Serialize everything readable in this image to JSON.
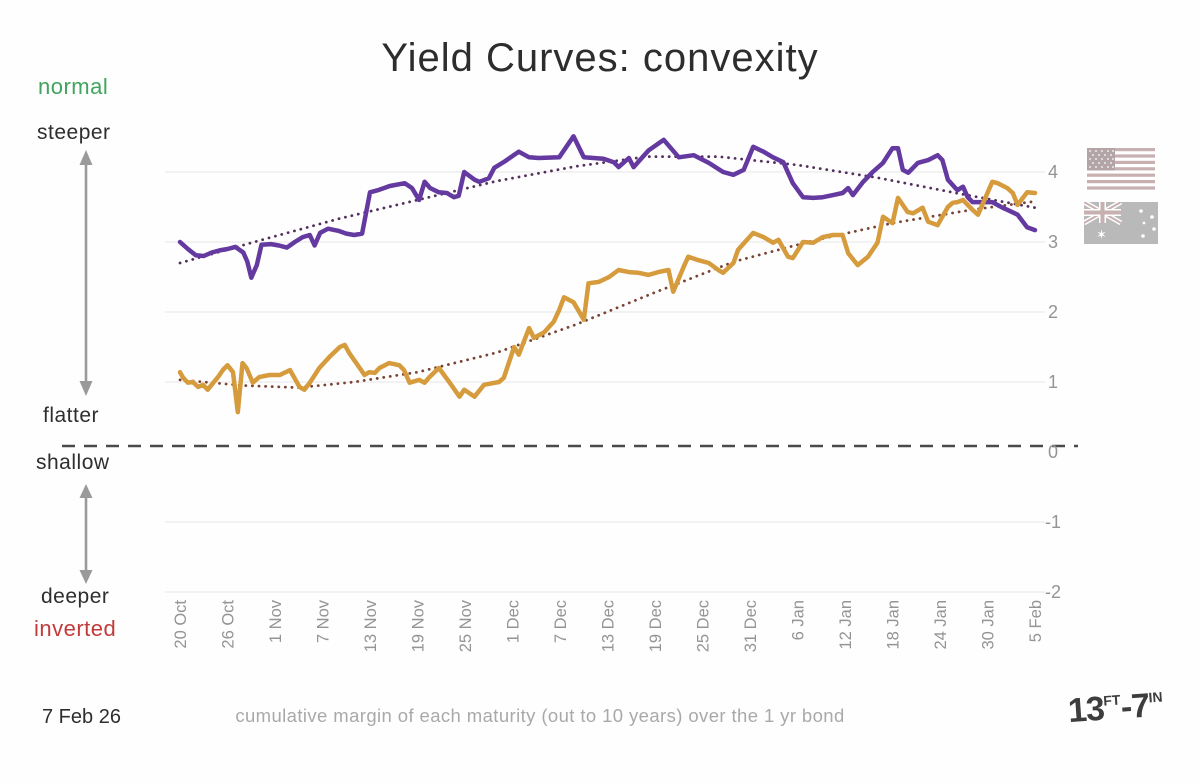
{
  "title": "Yield Curves: convexity",
  "left_labels": {
    "normal": "normal",
    "steeper": "steeper",
    "flatter": "flatter",
    "shallow": "shallow",
    "deeper": "deeper",
    "inverted": "inverted"
  },
  "footer": {
    "date": "7 Feb 26",
    "caption": "cumulative margin of each maturity (out to 10 years) over the 1 yr bond",
    "logo": {
      "big1": "13",
      "sup1": "FT",
      "big2": "-7",
      "sup2": "IN"
    }
  },
  "colors": {
    "purple_line": "#6439a0",
    "orange_line": "#d59b3c",
    "purple_trend": "#53305c",
    "orange_trend": "#7a4434",
    "gridline": "#ececec",
    "zero_dash": "#4a4a4a",
    "axis_text": "#949494",
    "arrow": "#9a9a9a",
    "normal_green": "#3fa45c",
    "inverted_red": "#c23b3b"
  },
  "chart_data": {
    "type": "line",
    "title": "Yield Curves: convexity",
    "xlabel": "",
    "ylabel": "cumulative margin (out to 10 years) over the 1 yr bond",
    "x_tick_labels": [
      "20 Oct",
      "26 Oct",
      "1 Nov",
      "7 Nov",
      "13 Nov",
      "19 Nov",
      "25 Nov",
      "1 Dec",
      "7 Dec",
      "13 Dec",
      "19 Dec",
      "25 Dec",
      "31 Dec",
      "6 Jan",
      "12 Jan",
      "18 Jan",
      "24 Jan",
      "30 Jan",
      "5 Feb"
    ],
    "days_per_tick": 6,
    "x_range_days": [
      0,
      108
    ],
    "ylim": [
      -2,
      4.6
    ],
    "y_ticks": [
      4,
      3,
      2,
      1,
      0,
      -1,
      -2
    ],
    "zero_line_dashed": true,
    "grid": true,
    "legend_icons": [
      "us-flag",
      "australia-flag"
    ],
    "series": [
      {
        "name": "australia-purple-line",
        "color_key": "purple_line",
        "points": [
          [
            0,
            3.0
          ],
          [
            1,
            2.9
          ],
          [
            2,
            2.81
          ],
          [
            3,
            2.8
          ],
          [
            4,
            2.85
          ],
          [
            5,
            2.88
          ],
          [
            6,
            2.9
          ],
          [
            7,
            2.93
          ],
          [
            8,
            2.85
          ],
          [
            8.5,
            2.72
          ],
          [
            9,
            2.49
          ],
          [
            9.7,
            2.67
          ],
          [
            10.3,
            2.96
          ],
          [
            11.5,
            2.97
          ],
          [
            12.5,
            2.95
          ],
          [
            13.5,
            2.92
          ],
          [
            14.5,
            3.0
          ],
          [
            15.5,
            3.07
          ],
          [
            16.4,
            3.1
          ],
          [
            17,
            2.95
          ],
          [
            17.7,
            3.13
          ],
          [
            18.7,
            3.19
          ],
          [
            20,
            3.16
          ],
          [
            21,
            3.12
          ],
          [
            22,
            3.1
          ],
          [
            23,
            3.12
          ],
          [
            24,
            3.71
          ],
          [
            25,
            3.74
          ],
          [
            26.5,
            3.8
          ],
          [
            28.4,
            3.84
          ],
          [
            29.3,
            3.77
          ],
          [
            30.2,
            3.6
          ],
          [
            30.9,
            3.86
          ],
          [
            31.6,
            3.77
          ],
          [
            32.7,
            3.71
          ],
          [
            33.7,
            3.7
          ],
          [
            34.6,
            3.64
          ],
          [
            35.2,
            3.66
          ],
          [
            35.9,
            4.0
          ],
          [
            37.2,
            3.89
          ],
          [
            37.8,
            3.86
          ],
          [
            39,
            3.91
          ],
          [
            39.7,
            4.06
          ],
          [
            41,
            4.15
          ],
          [
            42.8,
            4.29
          ],
          [
            44.1,
            4.21
          ],
          [
            45.3,
            4.2
          ],
          [
            47.9,
            4.21
          ],
          [
            49.7,
            4.51
          ],
          [
            51,
            4.21
          ],
          [
            53.5,
            4.19
          ],
          [
            54.8,
            4.14
          ],
          [
            55.4,
            4.07
          ],
          [
            56.7,
            4.2
          ],
          [
            57.3,
            4.07
          ],
          [
            59.2,
            4.31
          ],
          [
            61.1,
            4.46
          ],
          [
            63,
            4.21
          ],
          [
            64.9,
            4.24
          ],
          [
            66.8,
            4.13
          ],
          [
            68.6,
            4.0
          ],
          [
            69.9,
            3.96
          ],
          [
            71.2,
            4.03
          ],
          [
            72.4,
            4.36
          ],
          [
            73.7,
            4.29
          ],
          [
            74.9,
            4.21
          ],
          [
            76.2,
            4.14
          ],
          [
            77.4,
            3.84
          ],
          [
            78.7,
            3.64
          ],
          [
            80,
            3.63
          ],
          [
            81.2,
            3.64
          ],
          [
            82.5,
            3.67
          ],
          [
            83.7,
            3.7
          ],
          [
            84.4,
            3.77
          ],
          [
            85,
            3.67
          ],
          [
            86.3,
            3.86
          ],
          [
            87.5,
            4.0
          ],
          [
            88.8,
            4.13
          ],
          [
            90,
            4.34
          ],
          [
            90.7,
            4.34
          ],
          [
            91.3,
            4.03
          ],
          [
            92,
            3.99
          ],
          [
            93.2,
            4.13
          ],
          [
            94.5,
            4.17
          ],
          [
            95.7,
            4.24
          ],
          [
            96.3,
            4.17
          ],
          [
            97,
            3.89
          ],
          [
            98.2,
            3.74
          ],
          [
            98.9,
            3.79
          ],
          [
            99.5,
            3.64
          ],
          [
            100.1,
            3.57
          ],
          [
            101.4,
            3.57
          ],
          [
            102.6,
            3.57
          ],
          [
            103.9,
            3.49
          ],
          [
            104.5,
            3.46
          ],
          [
            105.8,
            3.39
          ],
          [
            107,
            3.21
          ],
          [
            108,
            3.17
          ]
        ]
      },
      {
        "name": "us-orange-line",
        "color_key": "orange_line",
        "points": [
          [
            0,
            1.14
          ],
          [
            0.4,
            1.06
          ],
          [
            1,
            0.99
          ],
          [
            1.6,
            1.0
          ],
          [
            2.3,
            0.93
          ],
          [
            2.9,
            0.96
          ],
          [
            3.5,
            0.89
          ],
          [
            4.2,
            0.99
          ],
          [
            4.8,
            1.07
          ],
          [
            5.4,
            1.17
          ],
          [
            6,
            1.24
          ],
          [
            6.7,
            1.14
          ],
          [
            7.3,
            0.57
          ],
          [
            7.9,
            1.27
          ],
          [
            8.4,
            1.2
          ],
          [
            9.2,
            0.99
          ],
          [
            10,
            1.07
          ],
          [
            11.3,
            1.1
          ],
          [
            12.6,
            1.1
          ],
          [
            13.9,
            1.17
          ],
          [
            15.1,
            0.93
          ],
          [
            15.7,
            0.89
          ],
          [
            16.4,
            0.99
          ],
          [
            17.6,
            1.2
          ],
          [
            18.9,
            1.36
          ],
          [
            20.2,
            1.5
          ],
          [
            20.8,
            1.53
          ],
          [
            21.4,
            1.41
          ],
          [
            22.7,
            1.2
          ],
          [
            23.3,
            1.1
          ],
          [
            23.9,
            1.14
          ],
          [
            24.6,
            1.13
          ],
          [
            25.2,
            1.2
          ],
          [
            26.4,
            1.27
          ],
          [
            27.7,
            1.24
          ],
          [
            28.3,
            1.17
          ],
          [
            29,
            0.99
          ],
          [
            30.2,
            1.03
          ],
          [
            30.9,
            0.99
          ],
          [
            31.5,
            1.07
          ],
          [
            32.7,
            1.2
          ],
          [
            34,
            1.0
          ],
          [
            35.3,
            0.79
          ],
          [
            35.9,
            0.89
          ],
          [
            37.2,
            0.79
          ],
          [
            38.4,
            0.96
          ],
          [
            40.3,
            1.0
          ],
          [
            40.9,
            1.06
          ],
          [
            42.2,
            1.5
          ],
          [
            42.8,
            1.39
          ],
          [
            44.1,
            1.77
          ],
          [
            44.7,
            1.63
          ],
          [
            46,
            1.71
          ],
          [
            47.2,
            1.86
          ],
          [
            47.9,
            2.03
          ],
          [
            48.5,
            2.21
          ],
          [
            49.7,
            2.14
          ],
          [
            51,
            1.89
          ],
          [
            51.6,
            2.41
          ],
          [
            52.9,
            2.43
          ],
          [
            54.2,
            2.5
          ],
          [
            55.4,
            2.6
          ],
          [
            56.7,
            2.57
          ],
          [
            57.9,
            2.56
          ],
          [
            59.2,
            2.53
          ],
          [
            60.4,
            2.57
          ],
          [
            61.7,
            2.6
          ],
          [
            62.3,
            2.29
          ],
          [
            63.6,
            2.64
          ],
          [
            64.2,
            2.79
          ],
          [
            65.5,
            2.74
          ],
          [
            66.8,
            2.7
          ],
          [
            68,
            2.6
          ],
          [
            68.6,
            2.56
          ],
          [
            69.9,
            2.7
          ],
          [
            70.5,
            2.89
          ],
          [
            72.4,
            3.13
          ],
          [
            73.7,
            3.07
          ],
          [
            74.9,
            2.99
          ],
          [
            75.6,
            3.03
          ],
          [
            76.8,
            2.79
          ],
          [
            77.4,
            2.77
          ],
          [
            78.7,
            3.0
          ],
          [
            80,
            2.99
          ],
          [
            81.2,
            3.07
          ],
          [
            82.5,
            3.1
          ],
          [
            83.7,
            3.1
          ],
          [
            84.4,
            2.84
          ],
          [
            85.6,
            2.67
          ],
          [
            86.9,
            2.79
          ],
          [
            88.1,
            2.99
          ],
          [
            88.8,
            3.36
          ],
          [
            90,
            3.27
          ],
          [
            90.7,
            3.63
          ],
          [
            91.9,
            3.43
          ],
          [
            92.6,
            3.41
          ],
          [
            93.8,
            3.49
          ],
          [
            94.5,
            3.29
          ],
          [
            95.7,
            3.24
          ],
          [
            97,
            3.5
          ],
          [
            97.6,
            3.56
          ],
          [
            98.2,
            3.57
          ],
          [
            98.9,
            3.6
          ],
          [
            100.1,
            3.46
          ],
          [
            100.8,
            3.39
          ],
          [
            102.6,
            3.86
          ],
          [
            103.3,
            3.84
          ],
          [
            104.5,
            3.77
          ],
          [
            105.2,
            3.7
          ],
          [
            105.8,
            3.53
          ],
          [
            107,
            3.71
          ],
          [
            108,
            3.7
          ]
        ]
      }
    ],
    "trend_series": [
      {
        "name": "australia-purple-trend-dotted",
        "color_key": "purple_trend",
        "points": [
          [
            0,
            2.7
          ],
          [
            10,
            3.02
          ],
          [
            20,
            3.33
          ],
          [
            30,
            3.6
          ],
          [
            40,
            3.87
          ],
          [
            50,
            4.08
          ],
          [
            59,
            4.22
          ],
          [
            68,
            4.22
          ],
          [
            78,
            4.1
          ],
          [
            88,
            3.92
          ],
          [
            98,
            3.7
          ],
          [
            108,
            3.49
          ]
        ]
      },
      {
        "name": "us-orange-trend-dotted",
        "color_key": "orange_trend",
        "points": [
          [
            0,
            1.03
          ],
          [
            8,
            0.95
          ],
          [
            15,
            0.92
          ],
          [
            22,
            1.0
          ],
          [
            30,
            1.14
          ],
          [
            40,
            1.42
          ],
          [
            50,
            1.82
          ],
          [
            60,
            2.28
          ],
          [
            70,
            2.72
          ],
          [
            80,
            3.02
          ],
          [
            90,
            3.27
          ],
          [
            100,
            3.46
          ],
          [
            108,
            3.58
          ]
        ]
      }
    ]
  }
}
